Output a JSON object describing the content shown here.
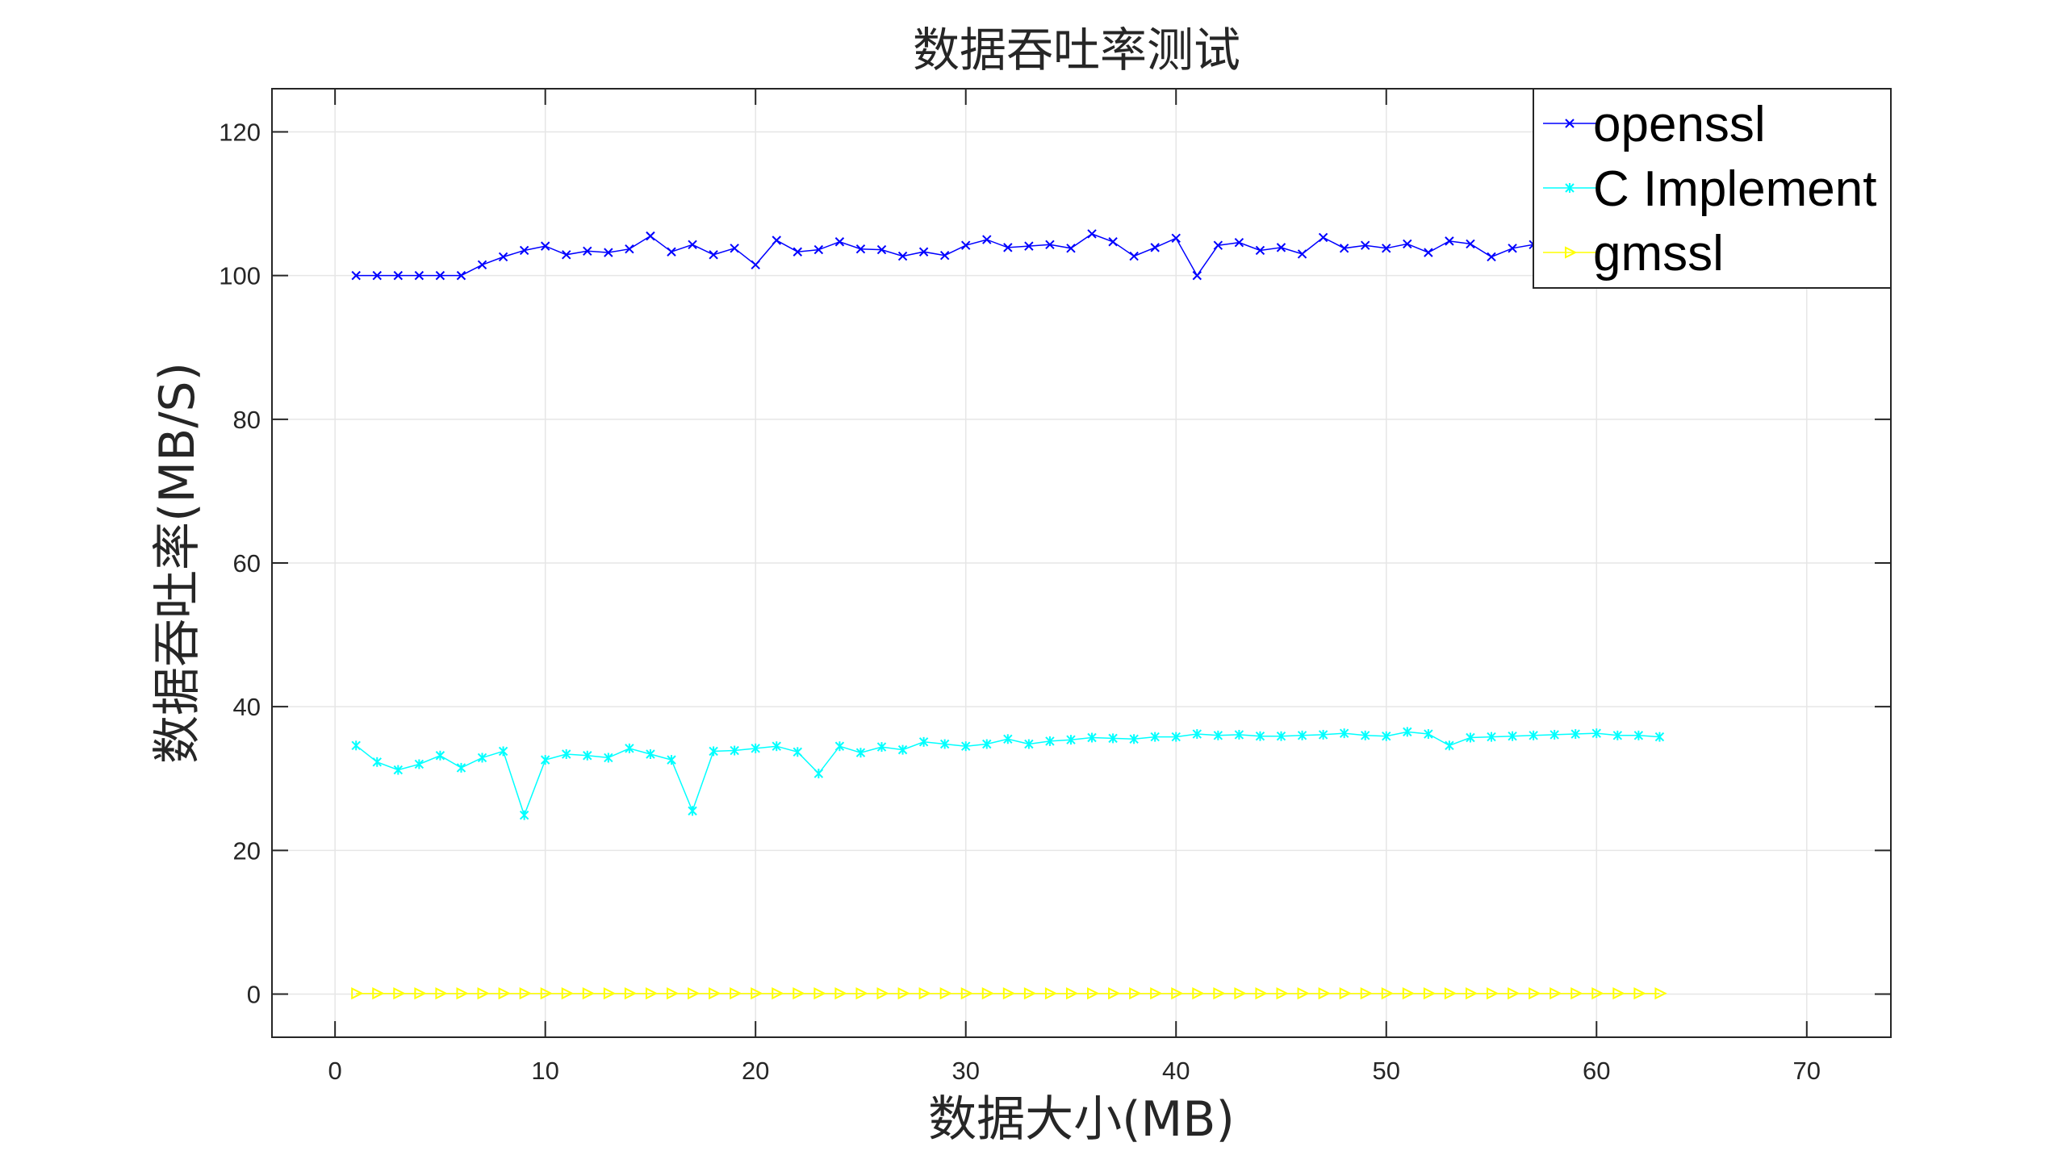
{
  "colors": {
    "background": "#ffffff",
    "axes": "#262626",
    "grid": "#e6e6e6",
    "openssl": "#0000ff",
    "c_implement": "#00ffff",
    "gmssl": "#ffff00"
  },
  "chart_data": {
    "type": "line",
    "title": "数据吞吐率测试",
    "xlabel": "数据大小(MB)",
    "ylabel": "数据吞吐率(MB/S)",
    "xlim": [
      -3,
      74
    ],
    "ylim": [
      -6,
      126
    ],
    "xticks": [
      0,
      10,
      20,
      30,
      40,
      50,
      60,
      70
    ],
    "yticks": [
      0,
      20,
      40,
      60,
      80,
      100,
      120
    ],
    "xtick_labels": [
      "0",
      "10",
      "20",
      "30",
      "40",
      "50",
      "60",
      "70"
    ],
    "ytick_labels": [
      "0",
      "20",
      "40",
      "60",
      "80",
      "100",
      "120"
    ],
    "grid": true,
    "legend_position": "top-right",
    "x": [
      1,
      2,
      3,
      4,
      5,
      6,
      7,
      8,
      9,
      10,
      11,
      12,
      13,
      14,
      15,
      16,
      17,
      18,
      19,
      20,
      21,
      22,
      23,
      24,
      25,
      26,
      27,
      28,
      29,
      30,
      31,
      32,
      33,
      34,
      35,
      36,
      37,
      38,
      39,
      40,
      41,
      42,
      43,
      44,
      45,
      46,
      47,
      48,
      49,
      50,
      51,
      52,
      53,
      54,
      55,
      56,
      57,
      58,
      59,
      60,
      61,
      62,
      63
    ],
    "series": [
      {
        "name": "openssl",
        "color": "#0000ff",
        "marker": "x",
        "values": [
          100.0,
          100.0,
          100.0,
          100.0,
          100.0,
          100.0,
          101.5,
          102.6,
          103.5,
          104.1,
          102.9,
          103.4,
          103.2,
          103.7,
          105.5,
          103.3,
          104.3,
          102.9,
          103.8,
          101.5,
          104.9,
          103.3,
          103.6,
          104.7,
          103.7,
          103.6,
          102.7,
          103.3,
          102.8,
          104.2,
          105.0,
          103.9,
          104.1,
          104.3,
          103.8,
          105.8,
          104.7,
          102.7,
          103.9,
          105.2,
          100.0,
          104.2,
          104.6,
          103.5,
          103.9,
          103.0,
          105.3,
          103.8,
          104.2,
          103.8,
          104.4,
          103.2,
          104.8,
          104.4,
          102.6,
          103.8,
          104.3,
          104.7,
          103.5,
          104.6,
          104.0,
          103.8,
          104.2
        ]
      },
      {
        "name": "C Implement",
        "color": "#00ffff",
        "marker": "*",
        "values": [
          34.6,
          32.3,
          31.2,
          32.0,
          33.2,
          31.5,
          32.9,
          33.8,
          24.9,
          32.6,
          33.4,
          33.2,
          32.9,
          34.2,
          33.4,
          32.6,
          25.5,
          33.8,
          33.9,
          34.2,
          34.5,
          33.7,
          30.7,
          34.5,
          33.6,
          34.4,
          34.0,
          35.1,
          34.8,
          34.5,
          34.8,
          35.5,
          34.8,
          35.2,
          35.4,
          35.7,
          35.6,
          35.5,
          35.8,
          35.8,
          36.2,
          36.0,
          36.1,
          35.9,
          35.9,
          36.0,
          36.1,
          36.3,
          36.0,
          35.9,
          36.5,
          36.2,
          34.6,
          35.7,
          35.8,
          35.9,
          36.0,
          36.1,
          36.2,
          36.3,
          36.0,
          36.0,
          35.8
        ]
      },
      {
        "name": "gmssl",
        "color": "#ffff00",
        "marker": ">",
        "values": [
          0.1,
          0.1,
          0.1,
          0.1,
          0.1,
          0.1,
          0.1,
          0.1,
          0.1,
          0.1,
          0.1,
          0.1,
          0.1,
          0.1,
          0.1,
          0.1,
          0.1,
          0.1,
          0.1,
          0.1,
          0.1,
          0.1,
          0.1,
          0.1,
          0.1,
          0.1,
          0.1,
          0.1,
          0.1,
          0.1,
          0.1,
          0.1,
          0.1,
          0.1,
          0.1,
          0.1,
          0.1,
          0.1,
          0.1,
          0.1,
          0.1,
          0.1,
          0.1,
          0.1,
          0.1,
          0.1,
          0.1,
          0.1,
          0.1,
          0.1,
          0.1,
          0.1,
          0.1,
          0.1,
          0.1,
          0.1,
          0.1,
          0.1,
          0.1,
          0.1,
          0.1,
          0.1,
          0.1
        ]
      }
    ]
  }
}
